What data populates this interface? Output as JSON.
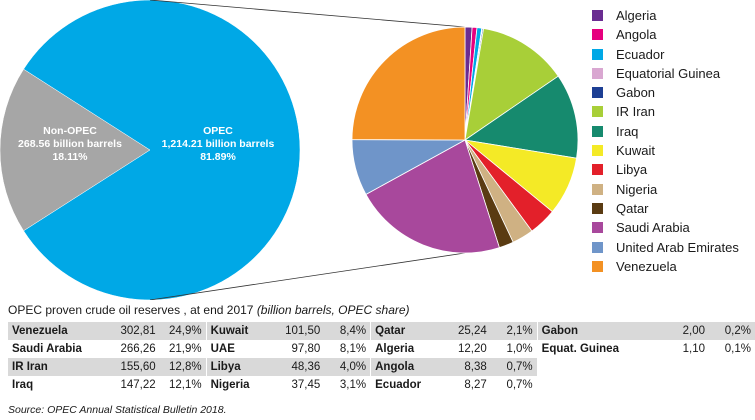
{
  "chart_data": [
    {
      "type": "pie",
      "slices": [
        {
          "name": "OPEC",
          "value_line": "1,214.21 billion barrels",
          "share_line": "81.89%",
          "value": 1214.21,
          "share": 81.89,
          "color": "#00a8e6"
        },
        {
          "name": "Non-OPEC",
          "value_line": "268.56 billion barrels",
          "share_line": "18.11%",
          "value": 268.56,
          "share": 18.11,
          "color": "#a6a6a6"
        }
      ]
    },
    {
      "type": "pie",
      "slices": [
        {
          "name": "Algeria",
          "value": 12.2,
          "color": "#6a2c91"
        },
        {
          "name": "Angola",
          "value": 8.38,
          "color": "#e6007e"
        },
        {
          "name": "Ecuador",
          "value": 8.27,
          "color": "#00a8e6"
        },
        {
          "name": "Equatorial Guinea",
          "value": 1.1,
          "color": "#d9a7d1"
        },
        {
          "name": "Gabon",
          "value": 2.0,
          "color": "#1d3f94"
        },
        {
          "name": "IR Iran",
          "value": 155.6,
          "color": "#a8cf38"
        },
        {
          "name": "Iraq",
          "value": 147.22,
          "color": "#168a6e"
        },
        {
          "name": "Kuwait",
          "value": 101.5,
          "color": "#f4ea26"
        },
        {
          "name": "Libya",
          "value": 48.36,
          "color": "#e3202a"
        },
        {
          "name": "Nigeria",
          "value": 37.45,
          "color": "#cfb183"
        },
        {
          "name": "Qatar",
          "value": 25.24,
          "color": "#5a3b12"
        },
        {
          "name": "Saudi Arabia",
          "value": 266.26,
          "color": "#a8489c"
        },
        {
          "name": "United Arab Emirates",
          "value": 97.8,
          "color": "#6f95c9"
        },
        {
          "name": "Venezuela",
          "value": 302.81,
          "color": "#f39123"
        }
      ]
    }
  ],
  "legend": [
    {
      "label": "Algeria",
      "color": "#6a2c91"
    },
    {
      "label": "Angola",
      "color": "#e6007e"
    },
    {
      "label": "Ecuador",
      "color": "#00a8e6"
    },
    {
      "label": "Equatorial Guinea",
      "color": "#d9a7d1"
    },
    {
      "label": "Gabon",
      "color": "#1d3f94"
    },
    {
      "label": "IR Iran",
      "color": "#a8cf38"
    },
    {
      "label": "Iraq",
      "color": "#168a6e"
    },
    {
      "label": "Kuwait",
      "color": "#f4ea26"
    },
    {
      "label": "Libya",
      "color": "#e3202a"
    },
    {
      "label": "Nigeria",
      "color": "#cfb183"
    },
    {
      "label": "Qatar",
      "color": "#5a3b12"
    },
    {
      "label": "Saudi Arabia",
      "color": "#a8489c"
    },
    {
      "label": "United Arab Emirates",
      "color": "#6f95c9"
    },
    {
      "label": "Venezuela",
      "color": "#f39123"
    }
  ],
  "caption": {
    "main": "OPEC proven crude oil reserves , at end 2017",
    "sub": "(billion barrels, OPEC share)"
  },
  "table": {
    "rows": [
      [
        [
          "Venezuela",
          "302,81",
          "24,9%"
        ],
        [
          "Kuwait",
          "101,50",
          "8,4%"
        ],
        [
          "Qatar",
          "25,24",
          "2,1%"
        ],
        [
          "Gabon",
          "2,00",
          "0,2%"
        ]
      ],
      [
        [
          "Saudi Arabia",
          "266,26",
          "21,9%"
        ],
        [
          "UAE",
          "97,80",
          "8,1%"
        ],
        [
          "Algeria",
          "12,20",
          "1,0%"
        ],
        [
          "Equat. Guinea",
          "1,10",
          "0,1%"
        ]
      ],
      [
        [
          "IR Iran",
          "155,60",
          "12,8%"
        ],
        [
          "Libya",
          "48,36",
          "4,0%"
        ],
        [
          "Angola",
          "8,38",
          "0,7%"
        ],
        [
          "",
          "",
          ""
        ]
      ],
      [
        [
          "Iraq",
          "147,22",
          "12,1%"
        ],
        [
          "Nigeria",
          "37,45",
          "3,1%"
        ],
        [
          "Ecuador",
          "8,27",
          "0,7%"
        ],
        [
          "",
          "",
          ""
        ]
      ]
    ]
  },
  "source": "Source: OPEC Annual Statistical Bulletin 2018."
}
